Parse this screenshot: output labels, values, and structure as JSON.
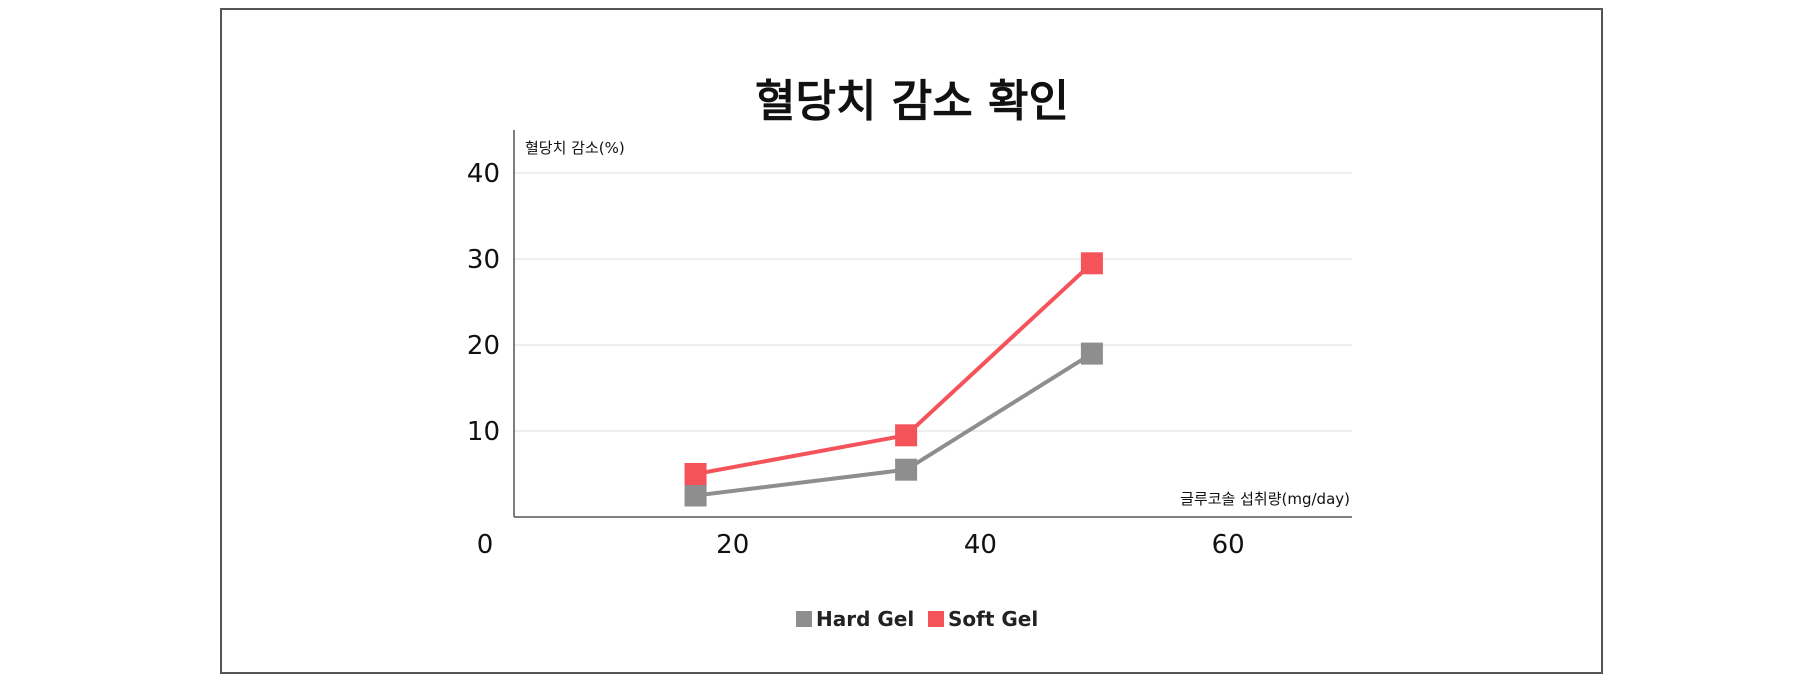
{
  "chart_data": {
    "type": "line",
    "title": "혈당치 감소 확인",
    "ylabel": "혈당치 감소(%)",
    "xlabel": "글루코솔 섭취량(mg/day)",
    "xlim": [
      0,
      70
    ],
    "ylim": [
      0,
      45
    ],
    "yticks": [
      10,
      20,
      30,
      40
    ],
    "xticks": [
      0,
      20,
      40,
      60
    ],
    "grid": true,
    "legend_position": "bottom",
    "series": [
      {
        "name": "Hard Gel",
        "color": "#8e8e8e",
        "points": [
          {
            "x": 17,
            "y": 2.5
          },
          {
            "x": 34,
            "y": 5.5
          },
          {
            "x": 49,
            "y": 19
          }
        ]
      },
      {
        "name": "Soft Gel",
        "color": "#f5535a",
        "points": [
          {
            "x": 17,
            "y": 5
          },
          {
            "x": 34,
            "y": 9.5
          },
          {
            "x": 49,
            "y": 29.5
          }
        ]
      }
    ]
  }
}
